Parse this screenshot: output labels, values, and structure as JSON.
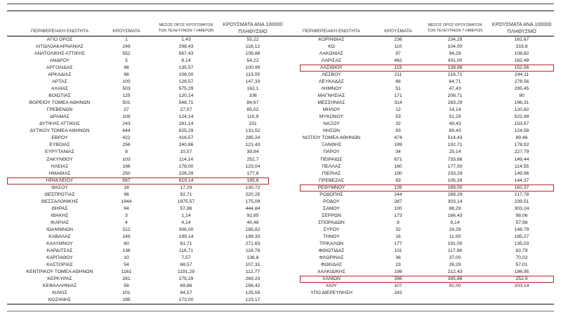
{
  "headers": {
    "name": "ΠΕΡΙΦΕΡΕΙΑΚΗ ΕΝΟΤΗΤΑ",
    "cases": "ΚΡΟΥΣΜΑΤΑ",
    "avg_line1": "ΜΕΣΟΣ ΟΡΟΣ ΚΡΟΥΣΜΑΤΩΝ",
    "avg_line2": "ΤΩΝ ΤΕΛΕΥΤΑΙΩΝ 7 ΗΜΕΡΩΝ",
    "per100k_line1": "ΚΡΟΥΣΜΑΤΑ ΑΝΑ 100000",
    "per100k_line2": "ΠΛΗΘΥΣΜΟ"
  },
  "highlight_color": "#b3262c",
  "left_rows": [
    [
      "ΑΓΙΟ ΟΡΟΣ",
      "1",
      "1,43",
      "55,22"
    ],
    [
      "ΑΙΤΩΛΟΑΚΑΡΝΑΝΙΑΣ",
      "249",
      "298,43",
      "118,12"
    ],
    [
      "ΑΝΑΤΟΛΙΚΗΣ ΑΤΤΙΚΗΣ",
      "552",
      "567,43",
      "109,88"
    ],
    [
      "ΑΝΔΡΟΥ",
      "5",
      "8,14",
      "54,22"
    ],
    [
      "ΑΡΓΟΛΙΔΑΣ",
      "98",
      "135,57",
      "100,99"
    ],
    [
      "ΑΡΚΑΔΙΑΣ",
      "98",
      "106,00",
      "113,05"
    ],
    [
      "ΑΡΤΑΣ",
      "100",
      "128,57",
      "147,33"
    ],
    [
      "ΑΧΑΪΑΣ",
      "503",
      "575,29",
      "162,1"
    ],
    [
      "ΒΟΙΩΤΙΑΣ",
      "125",
      "120,14",
      "106"
    ],
    [
      "ΒΟΡΕΙΟΥ ΤΟΜΕΑ ΑΘΗΝΩΝ",
      "501",
      "548,71",
      "84,67"
    ],
    [
      "ΓΡΕΒΕΝΩΝ",
      "27",
      "27,57",
      "85,02"
    ],
    [
      "ΔΡΑΜΑΣ",
      "109",
      "124,14",
      "110,9"
    ],
    [
      "ΔΥΤΙΚΗΣ ΑΤΤΙΚΗΣ",
      "243",
      "281,14",
      "151"
    ],
    [
      "ΔΥΤΙΚΟΥ ΤΟΜΕΑ ΑΘΗΝΩΝ",
      "644",
      "625,29",
      "131,52"
    ],
    [
      "ΕΒΡΟΥ",
      "422",
      "416,57",
      "285,24"
    ],
    [
      "ΕΥΒΟΙΑΣ",
      "256",
      "240,86",
      "121,43"
    ],
    [
      "ΕΥΡΥΤΑΝΙΑΣ",
      "8",
      "10,57",
      "39,84"
    ],
    [
      "ΖΑΚΥΝΘΟΥ",
      "103",
      "114,14",
      "252,7"
    ],
    [
      "ΗΛΕΙΑΣ",
      "196",
      "178,00",
      "123,04"
    ],
    [
      "ΗΜΑΘΙΑΣ",
      "250",
      "226,29",
      "177,8"
    ],
    [
      "ΗΡΑΚΛΕΙΟΥ",
      "567",
      "619,14",
      "185,6"
    ],
    [
      "ΘΑΣΟΥ",
      "18",
      "17,29",
      "130,72"
    ],
    [
      "ΘΕΣΠΡΩΤΙΑΣ",
      "96",
      "92,71",
      "220,25"
    ],
    [
      "ΘΕΣΣΑΛΟΝΙΚΗΣ",
      "1944",
      "1975,57",
      "175,09"
    ],
    [
      "ΘΗΡΑΣ",
      "84",
      "57,86",
      "444,84"
    ],
    [
      "ΙΘΑΚΗΣ",
      "3",
      "1,14",
      "92,85"
    ],
    [
      "ΙΚΑΡΙΑΣ",
      "4",
      "4,14",
      "40,48"
    ],
    [
      "ΙΩΑΝΝΙΝΩΝ",
      "312",
      "306,00",
      "185,82"
    ],
    [
      "ΚΑΒΑΛΑΣ",
      "249",
      "199,14",
      "199,33"
    ],
    [
      "ΚΑΛΥΜΝΟΥ",
      "80",
      "81,71",
      "271,63"
    ],
    [
      "ΚΑΡΔΙΤΣΑΣ",
      "136",
      "116,71",
      "119,78"
    ],
    [
      "ΚΑΡΠΑΘΟΥ",
      "10",
      "7,57",
      "136,8"
    ],
    [
      "ΚΑΣΤΟΡΙΑΣ",
      "54",
      "68,57",
      "107,31"
    ],
    [
      "ΚΕΝΤΡΙΚΟΥ ΤΟΜΕΑ ΑΘΗΝΩΝ",
      "1161",
      "1191,29",
      "112,77"
    ],
    [
      "ΚΕΡΚΥΡΑΣ",
      "281",
      "275,29",
      "269,23"
    ],
    [
      "ΚΕΦΑΛΛΗΝΙΑΣ",
      "56",
      "69,86",
      "156,42"
    ],
    [
      "ΚΙΛΚΙΣ",
      "101",
      "84,57",
      "125,59"
    ],
    [
      "ΚΟΖΑΝΗΣ",
      "185",
      "173,00",
      "123,17"
    ]
  ],
  "left_highlighted": [
    20
  ],
  "right_rows": [
    [
      "ΚΟΡΙΝΘΙΑΣ",
      "236",
      "234,29",
      "162,67"
    ],
    [
      "ΚΩ",
      "110",
      "104,00",
      "319,8"
    ],
    [
      "ΛΑΚΩΝΙΑΣ",
      "97",
      "94,29",
      "108,82"
    ],
    [
      "ΛΑΡΙΣΑΣ",
      "462",
      "431,00",
      "162,49"
    ],
    [
      "ΛΑΣΙΘΙΟΥ",
      "115",
      "139,86",
      "152,56"
    ],
    [
      "ΛΕΣΒΟΥ",
      "211",
      "216,71",
      "244,11"
    ],
    [
      "ΛΕΥΚΑΔΑΣ",
      "66",
      "64,71",
      "278,56"
    ],
    [
      "ΛΗΜΝΟΥ",
      "51",
      "47,43",
      "295,45"
    ],
    [
      "ΜΑΓΝΗΣΙΑΣ",
      "171",
      "208,71",
      "90"
    ],
    [
      "ΜΕΣΣΗΝΙΑΣ",
      "314",
      "283,29",
      "196,31"
    ],
    [
      "ΜΗΛΟΥ",
      "12",
      "14,14",
      "120,82"
    ],
    [
      "ΜΥΚΟΝΟΥ",
      "53",
      "51,29",
      "522,99"
    ],
    [
      "ΝΑΞΟΥ",
      "32",
      "49,43",
      "153,57"
    ],
    [
      "ΝΗΣΩΝ",
      "93",
      "89,43",
      "124,58"
    ],
    [
      "ΝΟΤΙΟΥ ΤΟΜΕΑ ΑΘΗΝΩΝ",
      "474",
      "514,43",
      "89,46"
    ],
    [
      "ΞΑΝΘΗΣ",
      "199",
      "192,71",
      "178,92"
    ],
    [
      "ΠΑΡΟΥ",
      "34",
      "25,14",
      "227,79"
    ],
    [
      "ΠΕΙΡΑΙΩΣ",
      "671",
      "733,86",
      "149,44"
    ],
    [
      "ΠΕΛΛΑΣ",
      "160",
      "177,00",
      "114,55"
    ],
    [
      "ΠΙΕΡΙΑΣ",
      "190",
      "233,29",
      "149,96"
    ],
    [
      "ΠΡΕΒΕΖΑΣ",
      "83",
      "105,29",
      "144,37"
    ],
    [
      "ΡΕΘΥΜΝΟΥ",
      "139",
      "169,00",
      "162,37"
    ],
    [
      "ΡΟΔΟΠΗΣ",
      "244",
      "289,29",
      "217,78"
    ],
    [
      "ΡΟΔΟΥ",
      "287",
      "303,14",
      "239,51"
    ],
    [
      "ΣΑΜΟΥ",
      "100",
      "88,29",
      "303,24"
    ],
    [
      "ΣΕΡΡΩΝ",
      "173",
      "166,43",
      "98,06"
    ],
    [
      "ΣΠΟΡΑΔΩΝ",
      "8",
      "9,14",
      "57,98"
    ],
    [
      "ΣΥΡΟΥ",
      "32",
      "24,29",
      "148,79"
    ],
    [
      "ΤΗΝΟΥ",
      "16",
      "11,00",
      "185,27"
    ],
    [
      "ΤΡΙΚΑΛΩΝ",
      "177",
      "191,00",
      "135,03"
    ],
    [
      "ΦΘΙΩΤΙΔΑΣ",
      "131",
      "117,86",
      "82,79"
    ],
    [
      "ΦΛΩΡΙΝΑΣ",
      "36",
      "37,00",
      "70,02"
    ],
    [
      "ΦΩΚΙΔΑΣ",
      "23",
      "26,29",
      "57,01"
    ],
    [
      "ΧΑΛΚΙΔΙΚΗΣ",
      "198",
      "212,43",
      "186,95"
    ],
    [
      "ΧΑΝΙΩΝ",
      "396",
      "395,86",
      "252,9"
    ],
    [
      "ΧΙΟΥ",
      "107",
      "92,00",
      "203,14"
    ],
    [
      "ΥΠΟ ΔΙΕΡΕΥΝΗΣΗ",
      "243",
      "",
      ""
    ]
  ],
  "right_highlighted": [
    4,
    21,
    34
  ]
}
